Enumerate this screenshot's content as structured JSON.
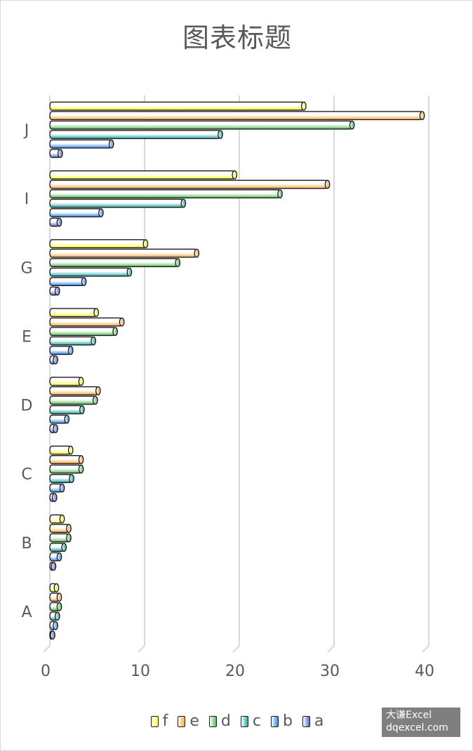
{
  "title": "图表标题",
  "colors": {
    "f": "#ffff33",
    "e": "#ffaa44",
    "d": "#55bb55",
    "c": "#22aaaa",
    "b": "#3388ee",
    "a": "#5566dd",
    "gridline": "#d9d9d9",
    "text": "#595959"
  },
  "chart_data": {
    "type": "bar",
    "orientation": "horizontal",
    "bar_style": "3d-cylinder",
    "categories": [
      "A",
      "B",
      "C",
      "D",
      "E",
      "G",
      "I",
      "J"
    ],
    "series": [
      {
        "name": "a",
        "values": [
          0.3,
          0.4,
          0.5,
          0.6,
          0.6,
          0.8,
          1.0,
          1.1
        ]
      },
      {
        "name": "b",
        "values": [
          0.6,
          1.0,
          1.3,
          1.8,
          2.2,
          3.6,
          5.4,
          6.5
        ]
      },
      {
        "name": "c",
        "values": [
          0.8,
          1.5,
          2.3,
          3.4,
          4.6,
          8.4,
          14.1,
          18.0
        ]
      },
      {
        "name": "d",
        "values": [
          1.0,
          2.0,
          3.3,
          4.8,
          6.9,
          13.5,
          24.3,
          31.9
        ]
      },
      {
        "name": "e",
        "values": [
          1.0,
          2.0,
          3.3,
          5.1,
          7.6,
          15.5,
          29.3,
          39.3
        ]
      },
      {
        "name": "f",
        "values": [
          0.7,
          1.3,
          2.2,
          3.3,
          4.9,
          10.1,
          19.5,
          26.8
        ]
      }
    ],
    "x_ticks": [
      "0",
      "10",
      "20",
      "30",
      "40"
    ],
    "xlim": [
      0,
      40
    ],
    "grid": "vertical major gridlines",
    "legend": "bottom",
    "legend_order": [
      "f",
      "e",
      "d",
      "c",
      "b",
      "a"
    ]
  },
  "watermark": {
    "line1": "大谦Excel",
    "line2": "dqexcel.com"
  }
}
